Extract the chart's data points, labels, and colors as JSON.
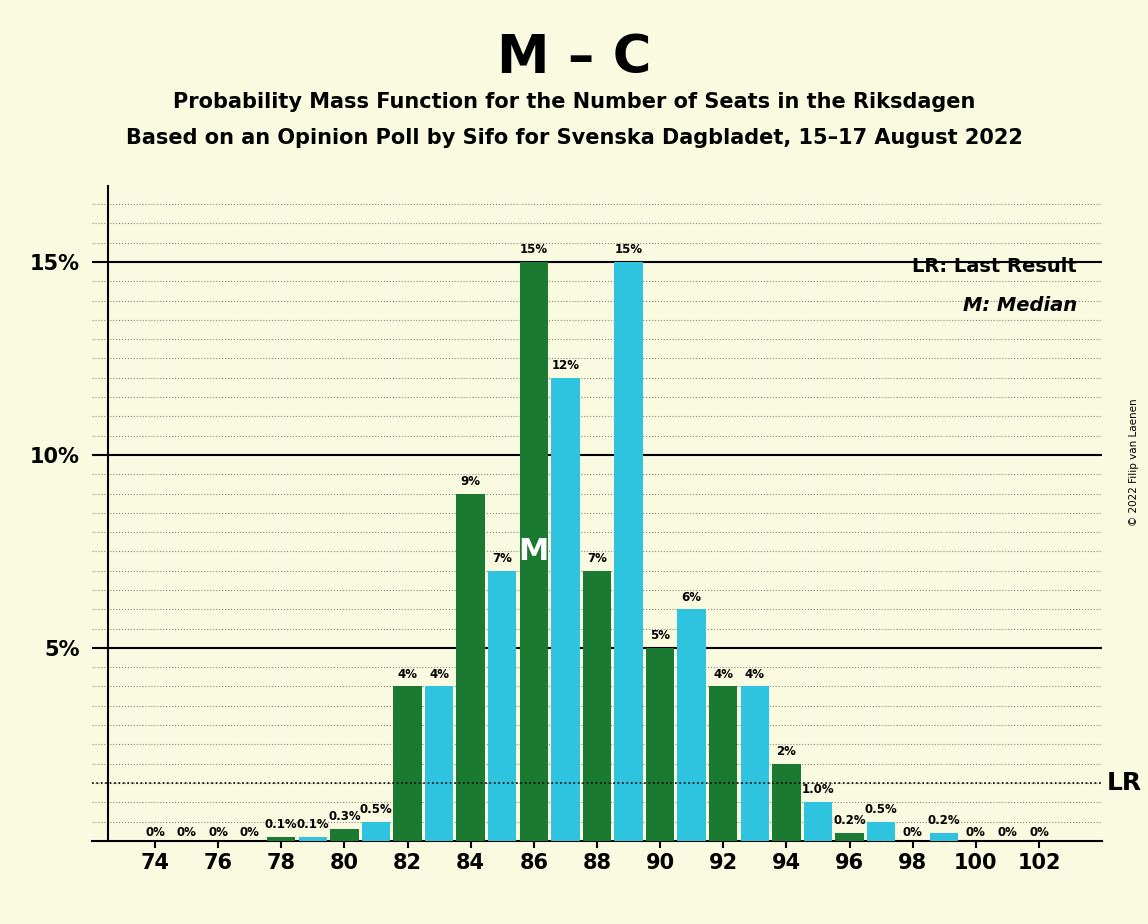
{
  "title": "M – C",
  "subtitle1": "Probability Mass Function for the Number of Seats in the Riksdagen",
  "subtitle2": "Based on an Opinion Poll by Sifo for Svenska Dagbladet, 15–17 August 2022",
  "copyright": "© 2022 Filip van Laenen",
  "green_seats": [
    74,
    76,
    78,
    80,
    82,
    84,
    86,
    88,
    90,
    92,
    94,
    96,
    98,
    100,
    102
  ],
  "green_values": [
    0.0,
    0.0,
    0.1,
    0.3,
    4.0,
    9.0,
    15.0,
    7.0,
    5.0,
    4.0,
    2.0,
    0.2,
    0.0,
    0.0,
    0.0
  ],
  "green_labels": [
    "0%",
    "0%",
    "0.1%",
    "0.3%",
    "4%",
    "9%",
    "15%",
    "7%",
    "5%",
    "4%",
    "2%",
    "0.2%",
    "0%",
    "0%",
    "0%"
  ],
  "blue_seats": [
    75,
    77,
    79,
    81,
    83,
    85,
    87,
    89,
    91,
    93,
    95,
    97,
    99,
    101
  ],
  "blue_values": [
    0.0,
    0.0,
    0.1,
    0.5,
    4.0,
    7.0,
    12.0,
    15.0,
    6.0,
    4.0,
    1.0,
    0.5,
    0.2,
    0.0
  ],
  "blue_labels": [
    "0%",
    "0%",
    "0.1%",
    "0.5%",
    "4%",
    "7%",
    "12%",
    "15%",
    "6%",
    "4%",
    "1.0%",
    "0.5%",
    "0.2%",
    "0%"
  ],
  "green_color": "#1a7a32",
  "blue_color": "#2ec4e0",
  "bg_color": "#fafae0",
  "median_seat": 86,
  "median_y": 7.5,
  "lr_y": 1.5,
  "legend_lr": "LR: Last Result",
  "legend_m": "M: Median",
  "ylim": [
    0,
    17
  ],
  "ytick_values": [
    0,
    5,
    10,
    15
  ],
  "ytick_labels": [
    "",
    "5%",
    "10%",
    "15%"
  ],
  "xtick_seats": [
    74,
    76,
    78,
    80,
    82,
    84,
    86,
    88,
    90,
    92,
    94,
    96,
    98,
    100,
    102
  ],
  "xlim": [
    72.0,
    104.0
  ],
  "bar_width": 0.9
}
